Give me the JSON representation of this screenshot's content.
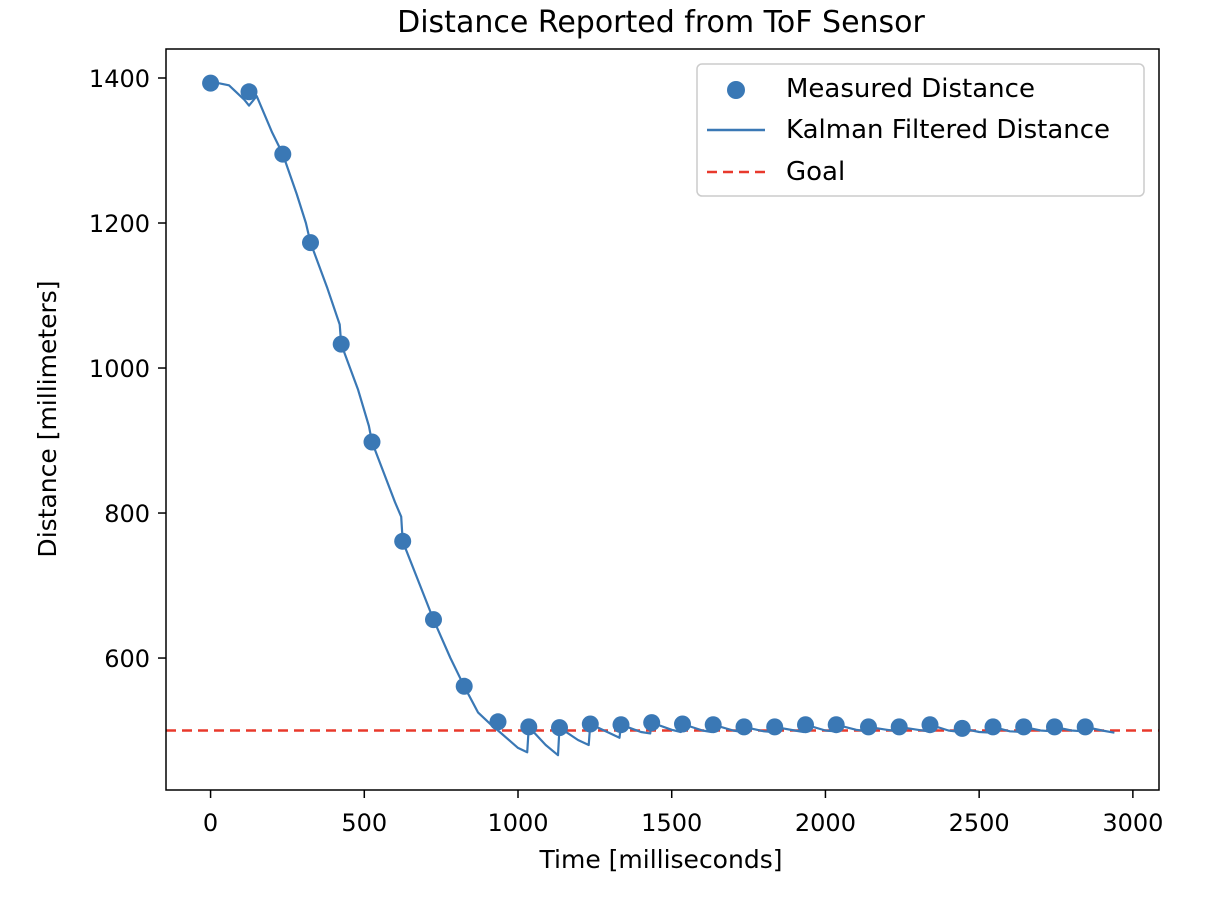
{
  "chart_data": {
    "type": "line",
    "title": "Distance Reported from ToF Sensor",
    "xlabel": "Time [milliseconds]",
    "ylabel": "Distance [millimeters]",
    "xlim": [
      -145,
      3085
    ],
    "ylim": [
      418,
      1440
    ],
    "xticks": [
      0,
      500,
      1000,
      1500,
      2000,
      2500,
      3000
    ],
    "yticks": [
      600,
      800,
      1000,
      1200,
      1400
    ],
    "grid": false,
    "legend_position": "top-right",
    "colors": {
      "measured": "#3a78b5",
      "kalman": "#3a78b5",
      "goal": "#e8392c"
    },
    "series": [
      {
        "name": "Measured Distance",
        "kind": "scatter",
        "x": [
          0,
          125,
          235,
          325,
          425,
          525,
          625,
          725,
          825,
          935,
          1035,
          1135,
          1235,
          1335,
          1435,
          1535,
          1635,
          1735,
          1835,
          1935,
          2035,
          2140,
          2240,
          2340,
          2445,
          2545,
          2645,
          2745,
          2845
        ],
        "y": [
          1393,
          1381,
          1295,
          1173,
          1033,
          898,
          761,
          653,
          561,
          512,
          505,
          504,
          509,
          508,
          511,
          509,
          508,
          505,
          505,
          508,
          508,
          505,
          505,
          508,
          503,
          505,
          505,
          505,
          505
        ]
      },
      {
        "name": "Kalman Filtered Distance",
        "kind": "line",
        "x": [
          0,
          60,
          110,
          125,
          150,
          200,
          235,
          280,
          310,
          325,
          380,
          420,
          425,
          480,
          515,
          525,
          600,
          620,
          625,
          700,
          725,
          780,
          825,
          870,
          920,
          935,
          1000,
          1030,
          1035,
          1090,
          1130,
          1135,
          1195,
          1230,
          1235,
          1300,
          1330,
          1335,
          1400,
          1430,
          1435,
          1500,
          1530,
          1535,
          1600,
          1630,
          1635,
          1700,
          1730,
          1735,
          1800,
          1830,
          1835,
          1900,
          1930,
          1935,
          2000,
          2030,
          2035,
          2100,
          2135,
          2140,
          2200,
          2235,
          2240,
          2300,
          2335,
          2340,
          2400,
          2440,
          2445,
          2500,
          2540,
          2545,
          2600,
          2640,
          2645,
          2700,
          2740,
          2745,
          2800,
          2840,
          2845,
          2900,
          2940
        ],
        "y": [
          1395,
          1390,
          1370,
          1362,
          1375,
          1325,
          1295,
          1240,
          1200,
          1173,
          1110,
          1060,
          1033,
          970,
          920,
          898,
          815,
          795,
          761,
          680,
          653,
          600,
          561,
          525,
          505,
          500,
          476,
          470,
          505,
          480,
          466,
          504,
          487,
          480,
          509,
          496,
          490,
          508,
          498,
          496,
          511,
          501,
          498,
          509,
          500,
          498,
          508,
          500,
          498,
          505,
          499,
          498,
          505,
          500,
          498,
          508,
          500,
          499,
          508,
          501,
          499,
          505,
          501,
          499,
          505,
          501,
          499,
          508,
          500,
          498,
          503,
          498,
          497,
          505,
          499,
          498,
          505,
          500,
          499,
          505,
          500,
          499,
          505,
          500,
          497
        ]
      },
      {
        "name": "Goal",
        "kind": "hline",
        "y": 500
      }
    ]
  }
}
